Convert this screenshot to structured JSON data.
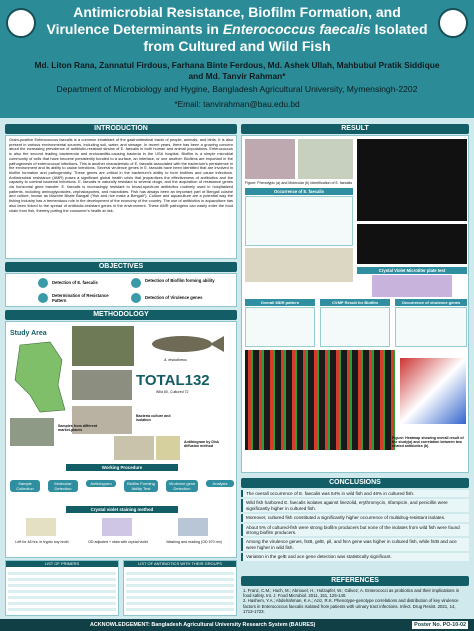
{
  "header": {
    "title_parts": [
      "Antimicrobial Resistance, Biofilm Formation, and Virulence Determinants in ",
      "Enterococcus faecalis",
      " Isolated from Cultured and Wild Fish"
    ],
    "authors": "Md. Liton Rana, Zannatul Firdous, Farhana Binte Ferdous, Md. Ashek Ullah, Mahbubul Pratik Siddique and Md. Tanvir Rahman*",
    "affiliation": "Department of Microbiology and Hygine, Bangladesh Agricultural University, Mymensingh-2202",
    "email": "*Email: tanvirahman@bau.edu.bd"
  },
  "introduction": {
    "heading": "INTRODUCTION",
    "text": "Gram-positive Enterococcus faecalis is a common inhabitant of the gastrointestinal tracts of people, animals, and birds. It is also present in various environmental sources, including soil, water, and sewage. In recent years, there has been a growing concern about the increasing prevalence of antibiotic-resistant strains of E. faecalis in both human and animal populations. Enterococcus is also the second leading bacteremia and endocarditis-causing bacteria in the USA hospital. Biofilm is a simple microbial community of cells that have become persistently bonded to a surface, an interface, or one another. Biofilms are important in the pathogenesis of enterococcal infections. This is another characteristic of E. faecalis associated with the bacterium's persistence in the environment and its ability to cause infections. Several virulence genes in E. faecalis have been identified that are involved in biofilm formation and pathogenicity. These genes are critical in the bacterium's ability to form biofilms and cause infections. Antimicrobial resistance (AMR) poses a significant global health crisis that jeopardizes the effectiveness of antibiotics and the capacity to combat bacterial infections. E. faecalis is naturally resistant to several drugs, and the acquisition of resistance genes via horizontal gene transfer. E. faecalis is increasingly resistant to broad-spectrum antibiotics routinely used in hospitalized patients, including aminoglycosides, cephalosporins, and macrolides. Fish has always been an important part of Bengali cuisine and culture, known as Machhe Bhate Bangali (\"fish and rice make a Bengali\"). Culture and aquaculture are a potential way the fishing industry has a tremendous role in the development of the economy of the country. The use of antibiotics in aquaculture has also been linked to the spread of antibiotic-resistant genes in the environment. These AMR pathogens can easily enter the food chain from fish, thereby putting the consumer's health at risk."
  },
  "objectives": {
    "heading": "OBJECTIVES",
    "items": [
      "Detection of E. faecalis",
      "Detection of Biofilm forming ability",
      "Determination of Resistance Pattern",
      "Detection of Virulence genes"
    ]
  },
  "methodology": {
    "heading": "METHODOLOGY",
    "study_area": "Study Area",
    "species": "A. testudineus",
    "total": "TOTAL132",
    "total_sub": "Wild 60, Cultured 72",
    "culture": "Bacteria culture and isolation",
    "samples": "Samples from different market-places",
    "antibiogram": "Antibiogram by Disk diffusion method",
    "procedure_heading": "Working Procedure",
    "steps": [
      "Sample Collection",
      "Molecular Detection",
      "Antibiogram",
      "Biofilm Forming Ability Test",
      "Virulence gene Detection",
      "Analysis"
    ],
    "cv_heading": "Crystal violet staining method",
    "cv_steps": [
      "Left for 48 hrs. in tryptic soy broth",
      "OD adjusted + stain with crystal violet",
      "Washing and reading (OD 570 nm)"
    ],
    "tables": [
      "LIST OF PRIMERS",
      "LIST OF ANTIBIOTICS WITH THEIR GROUPS"
    ]
  },
  "result": {
    "heading": "RESULT",
    "fig1": "Figure: Phenotypic (a) and Molecular (b) Identification of E. faecalis",
    "occurrence": "Occurrence of E. faecalis",
    "cvmp": "Crystal Violet Microtiter plate test",
    "mdr": "Overall MDR pattern",
    "biofilm": "CVMP Result for Biofilm",
    "virulence": "Occurrence of virulence genes",
    "heatmap": "Figure: Heatmap showing overall result of the study(a) and correlation between two related antibiotics (b)"
  },
  "conclusions": {
    "heading": "CONCLUSIONS",
    "items": [
      "The overall occurrence of E. faecalis was 54% in wild fish and 46% in cultured fish.",
      "Wild fish harbored E. faecalis isolates against linezolid, erythromycin, rifampicin, and penicillin were significantly higher in cultured fish.",
      "Moreover, cultured fish constituted a significantly higher occurrence of multidrug-resistant isolates.",
      "About 5% of cultured-fish were strong biofilm producers but none of the isolates from wild fish were found strong biofilm producers.",
      "Among the virulence genes, fsrB, gelE, pil, and fsrA gene was higher in cultured fish, while fsrB and ace were higher in wild fish.",
      "Variation in the gelE and ace gene detection was statistically significant."
    ]
  },
  "references": {
    "heading": "REFERENCES",
    "items": [
      "1. Franz, C.M.; Huch, M.; Abriouel, H.; Holzapfel, W.; Gálvez, A. Enterococci as probiotics and their implications in food safety. Int. J. Food Microbiol. 2011, 151, 125-140.",
      "2. Hashem, Y.A.; Abdelrahman, K.A.; Aziz, R.K. Phenotype-genotype correlations and distribution of key virulence factors in Enterococcus faecalis isolated from patients with urinary tract infections. Infect. Drug Resist. 2021, 14, 1713-1723."
    ]
  },
  "footer": {
    "acknowledgement": "ACKNOWLEDGEMENT: Bangladesh Agricultural University Research System (BAURES)",
    "poster_no": "Poster No. PO-10-02"
  }
}
